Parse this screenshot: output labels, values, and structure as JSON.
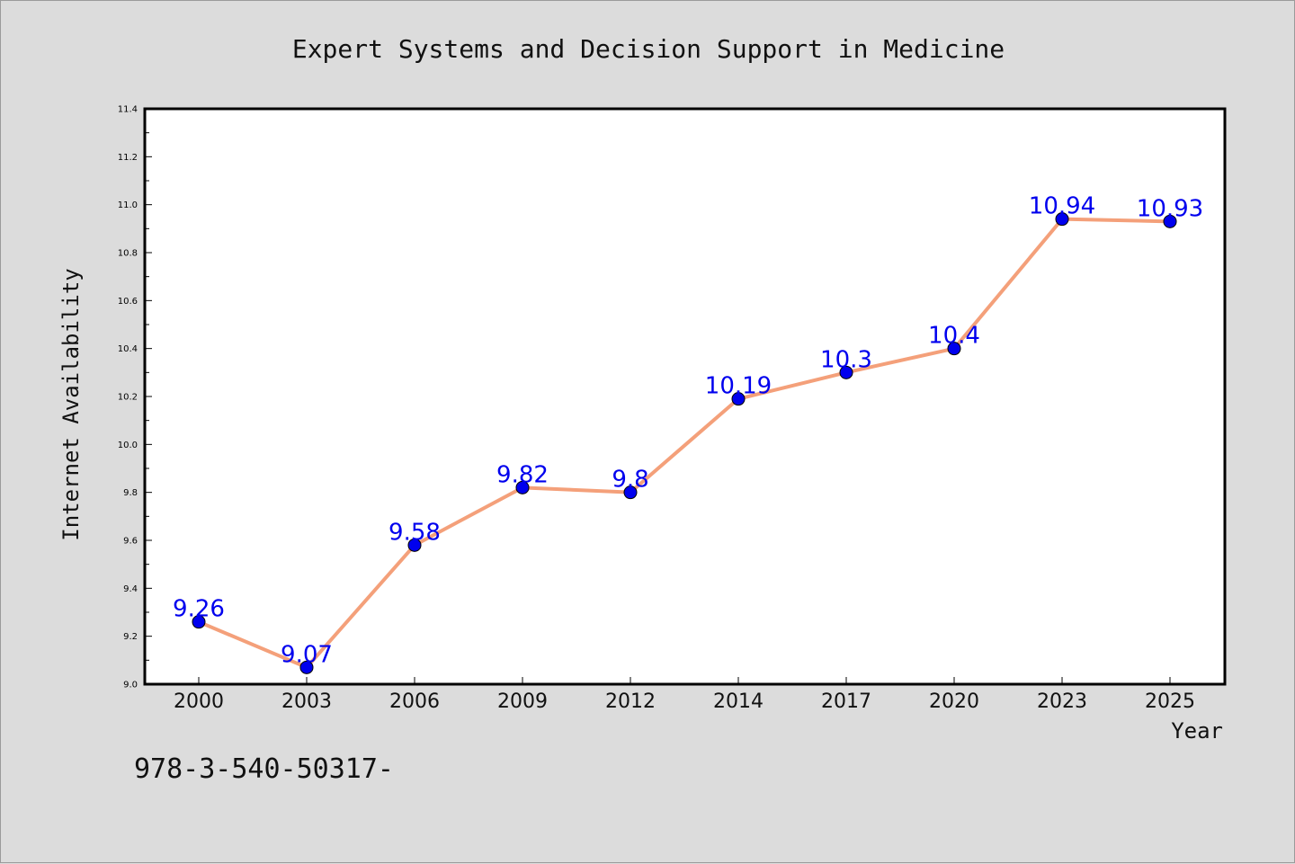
{
  "chart_data": {
    "type": "line",
    "title": "Expert Systems and Decision Support in Medicine",
    "xlabel": "Year",
    "ylabel": "Internet Availability",
    "categories": [
      "2000",
      "2003",
      "2006",
      "2009",
      "2012",
      "2014",
      "2017",
      "2020",
      "2023",
      "2025"
    ],
    "series": [
      {
        "values": [
          9.26,
          9.07,
          9.58,
          9.82,
          9.8,
          10.19,
          10.3,
          10.4,
          10.94,
          10.93
        ],
        "labels": [
          "9.26",
          "9.07",
          "9.58",
          "9.82",
          "9.8",
          "10.19",
          "10.3",
          "10.4",
          "10.94",
          "10.93"
        ],
        "line_color": "#f4a07a",
        "marker_color": "#0000ee",
        "label_color": "#0000ee"
      }
    ],
    "ylim": [
      9.0,
      11.4
    ],
    "yticks": [
      "9.0",
      "9.2",
      "9.4",
      "9.6",
      "9.8",
      "10.0",
      "10.2",
      "10.4",
      "10.6",
      "10.8",
      "11.0",
      "11.2",
      "11.4"
    ],
    "grid": false,
    "legend": "none"
  },
  "footer_text": "978-3-540-50317-"
}
